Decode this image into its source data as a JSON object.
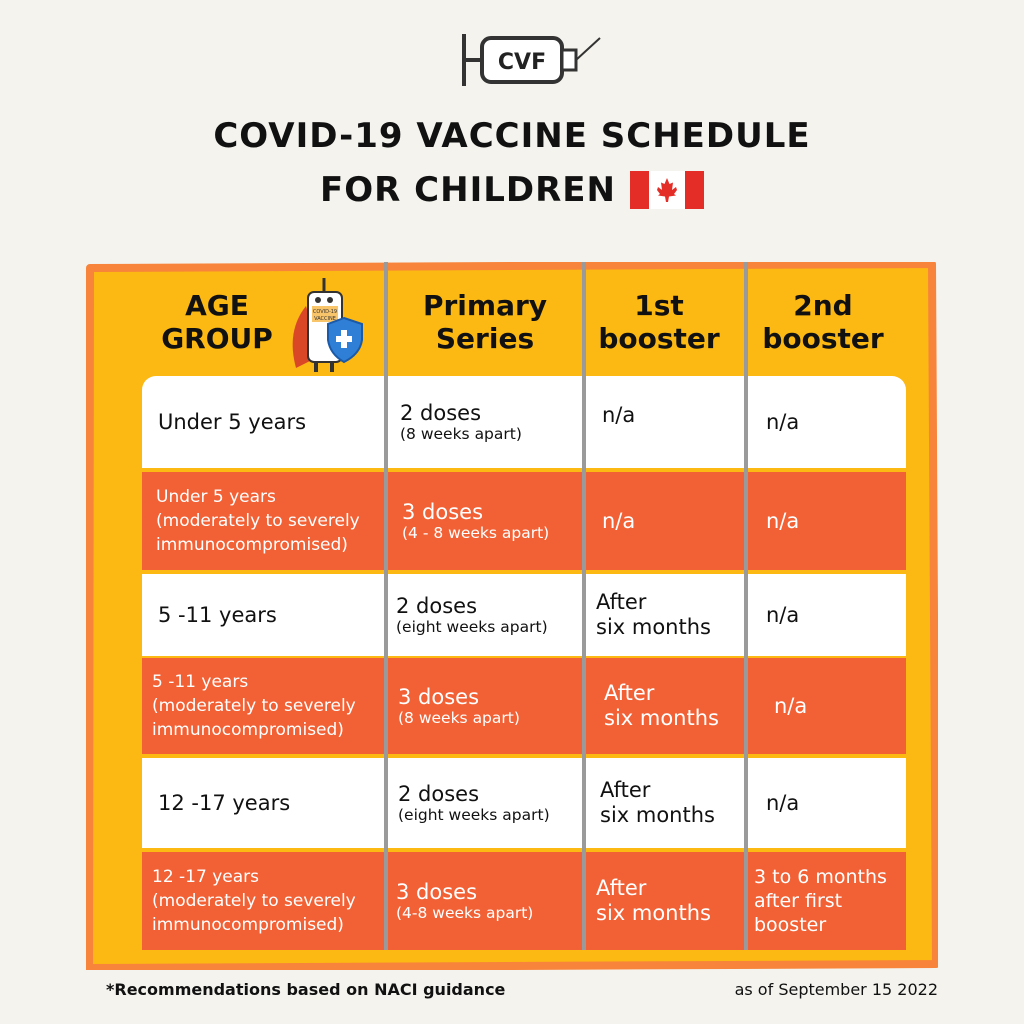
{
  "logo": {
    "text": "CVF"
  },
  "title": {
    "line1": "COVID-19 VACCINE SCHEDULE",
    "line2": "FOR CHILDREN"
  },
  "mascot": {
    "label_line1": "COVID-19",
    "label_line2": "VACCINE"
  },
  "headers": {
    "age": [
      "AGE",
      "GROUP"
    ],
    "primary": [
      "Primary",
      "Series"
    ],
    "booster1": [
      "1st",
      "booster"
    ],
    "booster2": [
      "2nd",
      "booster"
    ]
  },
  "rows": [
    {
      "age": [
        "Under 5 years"
      ],
      "primary_main": "2 doses",
      "primary_sub": "(8 weeks apart)",
      "booster1": [
        "n/a"
      ],
      "booster2": [
        "n/a"
      ]
    },
    {
      "age": [
        "Under 5 years",
        "(moderately to severely",
        "immunocompromised)"
      ],
      "primary_main": "3 doses",
      "primary_sub": "(4 - 8 weeks apart)",
      "booster1": [
        "n/a"
      ],
      "booster2": [
        "n/a"
      ]
    },
    {
      "age": [
        "5 -11 years"
      ],
      "primary_main": "2 doses",
      "primary_sub": "(eight weeks apart)",
      "booster1": [
        "After",
        "six months"
      ],
      "booster2": [
        "n/a"
      ]
    },
    {
      "age": [
        "5 -11 years",
        "(moderately to severely",
        "immunocompromised)"
      ],
      "primary_main": "3 doses",
      "primary_sub": "(8 weeks apart)",
      "booster1": [
        "After",
        "six months"
      ],
      "booster2": [
        "n/a"
      ]
    },
    {
      "age": [
        "12 -17 years"
      ],
      "primary_main": "2 doses",
      "primary_sub": "(eight weeks apart)",
      "booster1": [
        "After",
        "six months"
      ],
      "booster2": [
        "n/a"
      ]
    },
    {
      "age": [
        "12 -17 years",
        "(moderately to severely",
        "immunocompromised)"
      ],
      "primary_main": "3 doses",
      "primary_sub": "(4-8 weeks apart)",
      "booster1": [
        "After",
        "six months"
      ],
      "booster2": [
        "3 to 6 months",
        "after first",
        "booster"
      ]
    }
  ],
  "footer": {
    "note": "*Recommendations based on NACI guidance",
    "date": "as of September 15 2022"
  },
  "colors": {
    "background": "#f4f3ee",
    "board": "#fcb813",
    "border": "#f7843a",
    "row_alt": "#f26135"
  }
}
